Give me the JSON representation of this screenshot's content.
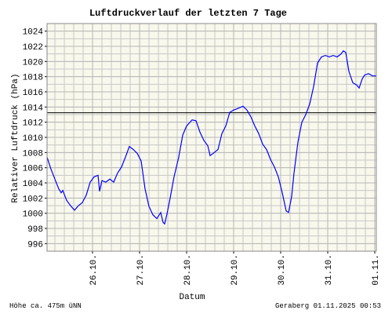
{
  "chart_data": {
    "type": "line",
    "title": "Luftdruckverlauf der letzten 7 Tage",
    "x_label": "Datum",
    "y_label": "Relativer Luftdruck (hPa)",
    "footer_left": "Höhe ca. 475m üNN",
    "footer_right": "Geraberg 01.11.2025 00:53",
    "reference_line": 1013.25,
    "grid": true,
    "color": "#0000ff",
    "xlim": [
      0.033,
      7.033
    ],
    "ylim": [
      995,
      1025
    ],
    "xticks": [
      {
        "value": 1,
        "label": "26.10."
      },
      {
        "value": 2,
        "label": "27.10."
      },
      {
        "value": 3,
        "label": "28.10."
      },
      {
        "value": 4,
        "label": "29.10."
      },
      {
        "value": 5,
        "label": "30.10."
      },
      {
        "value": 6,
        "label": "31.10."
      },
      {
        "value": 7,
        "label": "01.11."
      }
    ],
    "yticks": [
      996,
      998,
      1000,
      1002,
      1004,
      1006,
      1008,
      1010,
      1012,
      1014,
      1016,
      1018,
      1020,
      1022,
      1024
    ],
    "x": [
      0.033,
      0.117,
      0.2,
      0.283,
      0.333,
      0.367,
      0.45,
      0.533,
      0.617,
      0.7,
      0.783,
      0.867,
      0.95,
      1.033,
      1.117,
      1.15,
      1.2,
      1.283,
      1.367,
      1.45,
      1.533,
      1.617,
      1.7,
      1.783,
      1.867,
      1.95,
      2.033,
      2.117,
      2.2,
      2.283,
      2.367,
      2.45,
      2.5,
      2.533,
      2.583,
      2.65,
      2.733,
      2.833,
      2.917,
      3.0,
      3.117,
      3.2,
      3.283,
      3.367,
      3.45,
      3.5,
      3.567,
      3.667,
      3.75,
      3.833,
      3.917,
      4.0,
      4.083,
      4.2,
      4.283,
      4.367,
      4.45,
      4.533,
      4.617,
      4.7,
      4.783,
      4.867,
      4.95,
      5.033,
      5.117,
      5.167,
      5.233,
      5.283,
      5.367,
      5.45,
      5.533,
      5.617,
      5.7,
      5.783,
      5.867,
      5.95,
      6.033,
      6.117,
      6.2,
      6.283,
      6.333,
      6.383,
      6.45,
      6.533,
      6.617,
      6.667,
      6.733,
      6.783,
      6.867,
      6.95,
      7.033
    ],
    "values": [
      1007.4,
      1005.8,
      1004.5,
      1003.2,
      1002.7,
      1003.0,
      1001.7,
      1001.0,
      1000.4,
      1001.0,
      1001.4,
      1002.4,
      1004.1,
      1004.8,
      1005.0,
      1002.9,
      1004.3,
      1004.1,
      1004.5,
      1004.1,
      1005.3,
      1006.1,
      1007.4,
      1008.8,
      1008.4,
      1007.9,
      1006.9,
      1003.2,
      1000.9,
      999.8,
      999.3,
      1000.1,
      998.8,
      998.6,
      999.9,
      1002.0,
      1004.8,
      1007.4,
      1010.3,
      1011.5,
      1012.3,
      1012.2,
      1010.7,
      1009.6,
      1008.9,
      1007.6,
      1007.9,
      1008.4,
      1010.5,
      1011.5,
      1013.3,
      1013.6,
      1013.8,
      1014.1,
      1013.6,
      1012.7,
      1011.5,
      1010.5,
      1009.1,
      1008.4,
      1007.1,
      1006.1,
      1004.8,
      1002.7,
      1000.3,
      1000.1,
      1002.2,
      1005.3,
      1009.4,
      1012.0,
      1013.0,
      1014.4,
      1016.7,
      1019.8,
      1020.6,
      1020.8,
      1020.6,
      1020.8,
      1020.6,
      1021.0,
      1021.4,
      1021.2,
      1018.7,
      1017.2,
      1016.9,
      1016.5,
      1017.7,
      1018.2,
      1018.4,
      1018.1,
      1018.1
    ]
  }
}
